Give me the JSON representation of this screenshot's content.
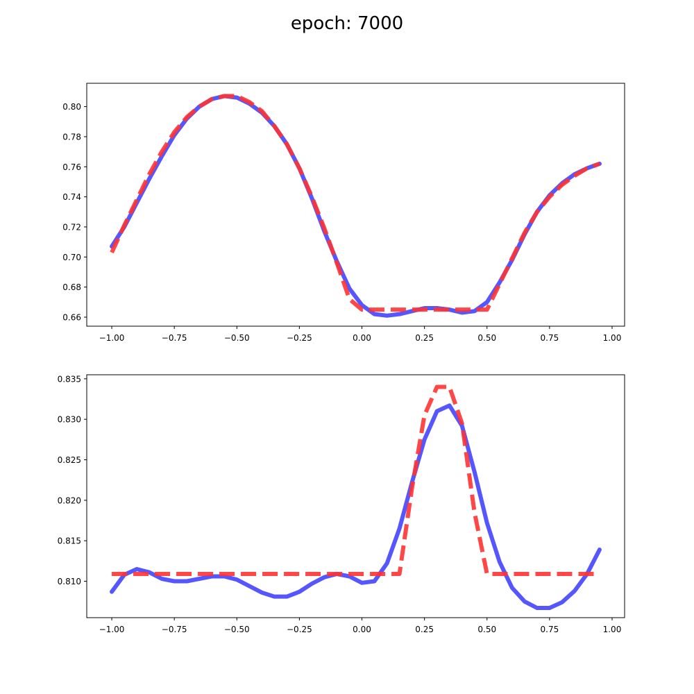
{
  "figure": {
    "title": "epoch: 7000"
  },
  "chart_data": [
    {
      "type": "line",
      "title": "",
      "xlabel": "",
      "ylabel": "",
      "xlim": [
        -1.1,
        1.05
      ],
      "ylim": [
        0.654,
        0.8155
      ],
      "grid": false,
      "xticks": [
        -1.0,
        -0.75,
        -0.5,
        -0.25,
        0.0,
        0.25,
        0.5,
        0.75,
        1.0
      ],
      "xtick_labels": [
        "−1.00",
        "−0.75",
        "−0.50",
        "−0.25",
        "0.00",
        "0.25",
        "0.50",
        "0.75",
        "1.00"
      ],
      "yticks": [
        0.66,
        0.68,
        0.7,
        0.72,
        0.74,
        0.76,
        0.78,
        0.8
      ],
      "ytick_labels": [
        "0.66",
        "0.68",
        "0.70",
        "0.72",
        "0.74",
        "0.76",
        "0.78",
        "0.80"
      ],
      "series": [
        {
          "style": "solid",
          "color": "#4444ff",
          "x": [
            -1.0,
            -0.95,
            -0.9,
            -0.85,
            -0.8,
            -0.75,
            -0.7,
            -0.65,
            -0.6,
            -0.55,
            -0.5,
            -0.45,
            -0.4,
            -0.35,
            -0.3,
            -0.25,
            -0.2,
            -0.15,
            -0.1,
            -0.05,
            0.0,
            0.05,
            0.1,
            0.15,
            0.2,
            0.25,
            0.3,
            0.35,
            0.4,
            0.45,
            0.5,
            0.55,
            0.6,
            0.65,
            0.7,
            0.75,
            0.8,
            0.85,
            0.9,
            0.95
          ],
          "y": [
            0.707,
            0.72,
            0.736,
            0.752,
            0.767,
            0.781,
            0.792,
            0.8,
            0.805,
            0.807,
            0.806,
            0.802,
            0.796,
            0.787,
            0.775,
            0.759,
            0.739,
            0.717,
            0.697,
            0.679,
            0.668,
            0.662,
            0.661,
            0.662,
            0.664,
            0.666,
            0.666,
            0.665,
            0.663,
            0.664,
            0.67,
            0.683,
            0.698,
            0.715,
            0.73,
            0.741,
            0.749,
            0.755,
            0.759,
            0.762
          ]
        },
        {
          "style": "dashed",
          "color": "#ff3333",
          "x": [
            -1.0,
            -0.95,
            -0.9,
            -0.85,
            -0.8,
            -0.75,
            -0.7,
            -0.65,
            -0.6,
            -0.55,
            -0.5,
            -0.45,
            -0.4,
            -0.35,
            -0.3,
            -0.25,
            -0.2,
            -0.15,
            -0.1,
            -0.05,
            0.0,
            0.05,
            0.1,
            0.15,
            0.2,
            0.25,
            0.3,
            0.35,
            0.4,
            0.45,
            0.5,
            0.55,
            0.6,
            0.65,
            0.7,
            0.75,
            0.8,
            0.85,
            0.9,
            0.95
          ],
          "y": [
            0.703,
            0.721,
            0.738,
            0.755,
            0.77,
            0.783,
            0.793,
            0.8,
            0.805,
            0.807,
            0.807,
            0.803,
            0.797,
            0.787,
            0.775,
            0.759,
            0.74,
            0.719,
            0.696,
            0.672,
            0.665,
            0.665,
            0.665,
            0.665,
            0.665,
            0.665,
            0.665,
            0.665,
            0.665,
            0.665,
            0.665,
            0.682,
            0.699,
            0.716,
            0.73,
            0.74,
            0.748,
            0.754,
            0.759,
            0.762
          ]
        }
      ]
    },
    {
      "type": "line",
      "title": "",
      "xlabel": "",
      "ylabel": "",
      "xlim": [
        -1.1,
        1.05
      ],
      "ylim": [
        0.8055,
        0.8355
      ],
      "grid": false,
      "xticks": [
        -1.0,
        -0.75,
        -0.5,
        -0.25,
        0.0,
        0.25,
        0.5,
        0.75,
        1.0
      ],
      "xtick_labels": [
        "−1.00",
        "−0.75",
        "−0.50",
        "−0.25",
        "0.00",
        "0.25",
        "0.50",
        "0.75",
        "1.00"
      ],
      "yticks": [
        0.81,
        0.815,
        0.82,
        0.825,
        0.83,
        0.835
      ],
      "ytick_labels": [
        "0.810",
        "0.815",
        "0.820",
        "0.825",
        "0.830",
        "0.835"
      ],
      "series": [
        {
          "style": "solid",
          "color": "#4444ff",
          "x": [
            -1.0,
            -0.95,
            -0.9,
            -0.85,
            -0.8,
            -0.75,
            -0.7,
            -0.65,
            -0.6,
            -0.55,
            -0.5,
            -0.45,
            -0.4,
            -0.35,
            -0.3,
            -0.25,
            -0.2,
            -0.15,
            -0.1,
            -0.05,
            0.0,
            0.05,
            0.1,
            0.15,
            0.2,
            0.25,
            0.3,
            0.35,
            0.4,
            0.45,
            0.5,
            0.55,
            0.6,
            0.65,
            0.7,
            0.75,
            0.8,
            0.85,
            0.9,
            0.95
          ],
          "y": [
            0.8087,
            0.8108,
            0.8115,
            0.8111,
            0.8103,
            0.81,
            0.81,
            0.8103,
            0.8106,
            0.8106,
            0.8102,
            0.8094,
            0.8086,
            0.8081,
            0.8081,
            0.8087,
            0.8097,
            0.8105,
            0.8109,
            0.8106,
            0.8098,
            0.81,
            0.8122,
            0.8165,
            0.8222,
            0.8275,
            0.831,
            0.8317,
            0.8292,
            0.8235,
            0.8172,
            0.8124,
            0.8092,
            0.8075,
            0.8067,
            0.8067,
            0.8074,
            0.8088,
            0.8109,
            0.8139
          ]
        },
        {
          "style": "dashed",
          "color": "#ff3333",
          "x": [
            -1.0,
            -0.95,
            -0.9,
            -0.85,
            -0.8,
            -0.75,
            -0.7,
            -0.65,
            -0.6,
            -0.55,
            -0.5,
            -0.45,
            -0.4,
            -0.35,
            -0.3,
            -0.25,
            -0.2,
            -0.15,
            -0.1,
            -0.05,
            0.0,
            0.05,
            0.1,
            0.15,
            0.2,
            0.25,
            0.3,
            0.35,
            0.4,
            0.45,
            0.5,
            0.55,
            0.6,
            0.65,
            0.7,
            0.75,
            0.8,
            0.85,
            0.9,
            0.95
          ],
          "y": [
            0.8109,
            0.8109,
            0.8109,
            0.8109,
            0.8109,
            0.8109,
            0.8109,
            0.8109,
            0.8109,
            0.8109,
            0.8109,
            0.8109,
            0.8109,
            0.8109,
            0.8109,
            0.8109,
            0.8109,
            0.8109,
            0.8109,
            0.8109,
            0.8109,
            0.8109,
            0.8109,
            0.8109,
            0.8215,
            0.8305,
            0.834,
            0.834,
            0.8295,
            0.8185,
            0.8109,
            0.8109,
            0.8109,
            0.8109,
            0.8109,
            0.8109,
            0.8109,
            0.8109,
            0.8109,
            0.8109
          ]
        }
      ]
    }
  ]
}
